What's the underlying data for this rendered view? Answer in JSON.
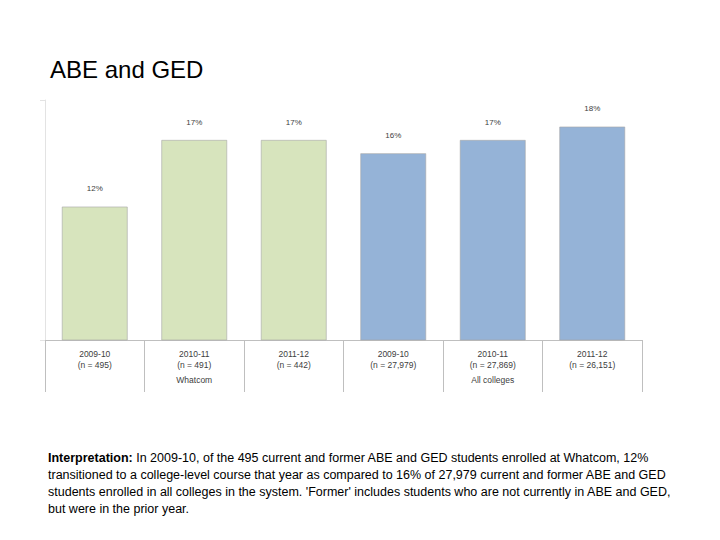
{
  "chart_data": {
    "type": "bar",
    "title": "ABE and GED",
    "categories": [
      "2009-10\n(n = 495)",
      "2010-11\n(n = 491)",
      "2011-12\n(n = 442)",
      "2009-10\n(n = 27,979)",
      "2010-11\n(n = 27,869)",
      "2011-12\n(n = 26,151)"
    ],
    "series": [
      {
        "name": "Whatcom",
        "color": "#d7e4bd",
        "values": [
          12,
          17,
          17,
          null,
          null,
          null
        ],
        "value_labels": [
          "12%",
          "17%",
          "17%",
          null,
          null,
          null
        ]
      },
      {
        "name": "All colleges",
        "color": "#95b3d7",
        "values": [
          null,
          null,
          null,
          16,
          17,
          18
        ],
        "value_labels": [
          null,
          null,
          null,
          "16%",
          "17%",
          "18%"
        ]
      }
    ],
    "ylim": [
      2,
      20
    ],
    "yticks": [
      2,
      20
    ],
    "grid": false,
    "data_labels": true,
    "tick_labels": "x",
    "annotation": {
      "label": "Interpretation:",
      "text": "In 2009-10, of the 495 current and former ABE and GED students enrolled at Whatcom, 12% transitioned to a college-level course that year as compared to 16% of 27,979 current and former ABE and GED students enrolled in all colleges in the system. 'Former' includes students who are not currently in ABE and GED, but were in the prior year."
    }
  }
}
